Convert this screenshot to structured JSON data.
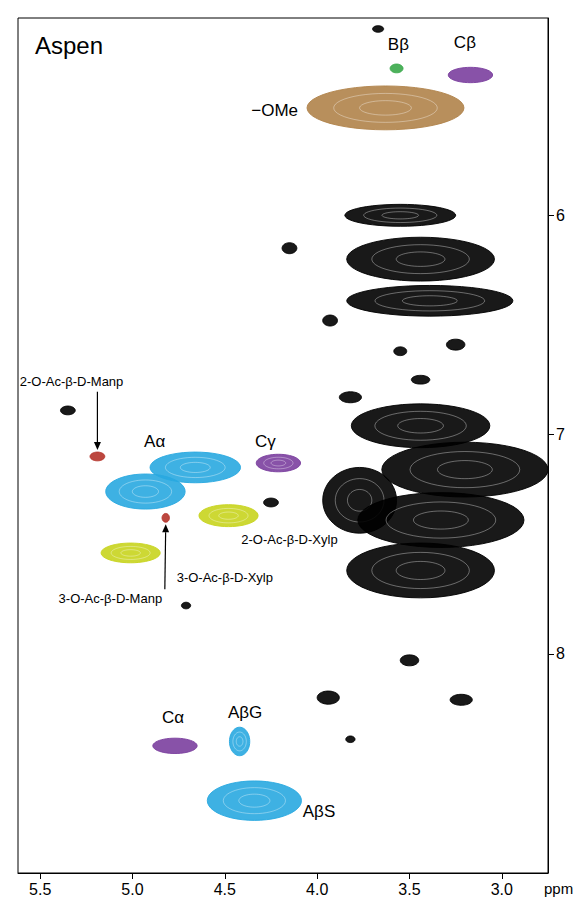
{
  "chart_data": {
    "type": "contour",
    "title": "Aspen",
    "x_label": "ppm",
    "xlim": [
      5.62,
      2.75
    ],
    "xticks": [
      5.5,
      {
        "value": 5,
        "label": "5.0"
      },
      4.5,
      {
        "value": 4,
        "label": "4.0"
      },
      3.5,
      {
        "value": 3,
        "label": "3.0"
      }
    ],
    "ylim": [
      5.1,
      9.0
    ],
    "yticks": [
      6,
      7,
      8
    ],
    "peaks": [
      {
        "label": "−OMe",
        "label_x": 4.23,
        "label_y": 5.52,
        "color": "#b0834a",
        "regions": [
          [
            3.63,
            5.51,
            0.85,
            0.2
          ]
        ]
      },
      {
        "label": "Bβ",
        "label_x": 3.56,
        "label_y": 5.22,
        "color": "#3aa84a",
        "regions": [
          [
            3.57,
            5.33,
            0.07,
            0.04
          ]
        ]
      },
      {
        "label": "Cβ",
        "label_x": 3.2,
        "label_y": 5.21,
        "color": "#7b3f9e",
        "regions": [
          [
            3.17,
            5.36,
            0.24,
            0.07
          ]
        ]
      },
      {
        "label": "Aα",
        "label_x": 4.88,
        "label_y": 7.03,
        "color": "#29a9e0",
        "regions": [
          [
            4.66,
            7.15,
            0.49,
            0.14
          ],
          [
            4.93,
            7.26,
            0.43,
            0.16
          ]
        ]
      },
      {
        "label": "Cγ",
        "label_x": 4.28,
        "label_y": 7.03,
        "color": "#7b3f9e",
        "regions": [
          [
            4.21,
            7.13,
            0.24,
            0.08
          ]
        ]
      },
      {
        "label": "2-O-Ac-β-D-Manp",
        "label_x": 5.33,
        "label_y": 6.76,
        "color": "#b5332a",
        "regions": [
          [
            5.19,
            7.1,
            0.08,
            0.04
          ]
        ]
      },
      {
        "label": "3-O-Ac-β-D-Manp",
        "label_x": 5.12,
        "label_y": 7.75,
        "color": "#b5332a",
        "regions": [
          [
            4.82,
            7.38,
            0.04,
            0.04
          ]
        ]
      },
      {
        "label": "2-O-Ac-β-D-Xylp",
        "label_x": 4.15,
        "label_y": 7.48,
        "color": "#c8d41e",
        "regions": [
          [
            4.48,
            7.37,
            0.32,
            0.1
          ]
        ]
      },
      {
        "label": "3-O-Ac-β-D-Xylp",
        "label_x": 4.5,
        "label_y": 7.65,
        "color": "#c8d41e",
        "regions": [
          [
            5.01,
            7.54,
            0.32,
            0.09
          ]
        ]
      },
      {
        "label": "AβG",
        "label_x": 4.39,
        "label_y": 8.27,
        "color": "#29a9e0",
        "regions": [
          [
            4.42,
            8.4,
            0.11,
            0.13
          ]
        ]
      },
      {
        "label": "Cα",
        "label_x": 4.78,
        "label_y": 8.29,
        "color": "#7b3f9e",
        "regions": [
          [
            4.77,
            8.42,
            0.24,
            0.07
          ]
        ]
      },
      {
        "label": "AβS",
        "label_x": 3.99,
        "label_y": 8.72,
        "color": "#29a9e0",
        "regions": [
          [
            4.34,
            8.67,
            0.51,
            0.18
          ]
        ]
      },
      {
        "color": "#000000",
        "regions": [
          [
            3.67,
            5.15,
            0.06,
            0.03
          ],
          [
            3.55,
            6.0,
            0.6,
            0.1
          ],
          [
            3.44,
            6.2,
            0.8,
            0.2
          ],
          [
            4.15,
            6.15,
            0.08,
            0.05
          ],
          [
            3.39,
            6.39,
            0.9,
            0.14
          ],
          [
            3.93,
            6.48,
            0.08,
            0.05
          ],
          [
            3.25,
            6.59,
            0.1,
            0.05
          ],
          [
            3.55,
            6.62,
            0.07,
            0.04
          ],
          [
            3.44,
            6.75,
            0.1,
            0.04
          ],
          [
            3.82,
            6.83,
            0.12,
            0.05
          ],
          [
            5.35,
            6.89,
            0.08,
            0.04
          ],
          [
            3.44,
            6.96,
            0.75,
            0.2
          ],
          [
            3.2,
            7.16,
            0.9,
            0.25
          ],
          [
            3.77,
            7.3,
            0.4,
            0.3
          ],
          [
            3.33,
            7.39,
            0.9,
            0.25
          ],
          [
            3.44,
            7.62,
            0.8,
            0.25
          ],
          [
            4.25,
            7.31,
            0.08,
            0.04
          ],
          [
            4.71,
            7.78,
            0.05,
            0.03
          ],
          [
            3.5,
            8.03,
            0.1,
            0.05
          ],
          [
            3.94,
            8.2,
            0.12,
            0.06
          ],
          [
            3.22,
            8.21,
            0.12,
            0.05
          ],
          [
            3.82,
            8.39,
            0.05,
            0.03
          ]
        ]
      }
    ]
  }
}
